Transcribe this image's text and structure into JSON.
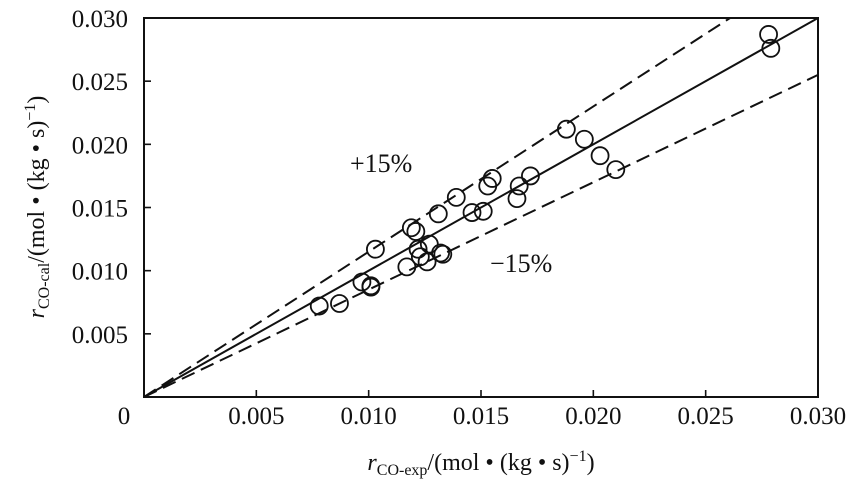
{
  "chart_data": {
    "type": "scatter",
    "xlim": [
      0,
      0.03
    ],
    "ylim": [
      0,
      0.03
    ],
    "xticks": [
      "0",
      "0.005",
      "0.010",
      "0.015",
      "0.020",
      "0.025",
      "0.030"
    ],
    "yticks": [
      "0.005",
      "0.010",
      "0.015",
      "0.020",
      "0.025",
      "0.030"
    ],
    "origin_label": "0",
    "xlabel": {
      "main": "r",
      "sub": "CO-exp",
      "rest": "/(mol • (kg • s)",
      "sup": "−1",
      "close": ")"
    },
    "ylabel": {
      "main": "r",
      "sub": "CO-cal",
      "rest": "/(mol • (kg • s)",
      "sup": "−1",
      "close": ")"
    },
    "annotations": {
      "upper": "+15%",
      "lower": "−15%"
    },
    "reference_lines": [
      {
        "kind": "parity",
        "slope": 1.0,
        "style": "solid"
      },
      {
        "kind": "upper-bound",
        "slope": 1.15,
        "style": "dashed"
      },
      {
        "kind": "lower-bound",
        "slope": 0.85,
        "style": "dashed"
      }
    ],
    "grid": false,
    "points": [
      {
        "x": 0.0078,
        "y": 0.0072
      },
      {
        "x": 0.0087,
        "y": 0.0074
      },
      {
        "x": 0.0097,
        "y": 0.0091
      },
      {
        "x": 0.0101,
        "y": 0.0088
      },
      {
        "x": 0.0101,
        "y": 0.0087
      },
      {
        "x": 0.0103,
        "y": 0.0117
      },
      {
        "x": 0.0117,
        "y": 0.0103
      },
      {
        "x": 0.0119,
        "y": 0.0134
      },
      {
        "x": 0.0121,
        "y": 0.0131
      },
      {
        "x": 0.0122,
        "y": 0.0117
      },
      {
        "x": 0.0123,
        "y": 0.0111
      },
      {
        "x": 0.0126,
        "y": 0.0107
      },
      {
        "x": 0.0127,
        "y": 0.0121
      },
      {
        "x": 0.0132,
        "y": 0.0114
      },
      {
        "x": 0.0133,
        "y": 0.0113
      },
      {
        "x": 0.0131,
        "y": 0.0145
      },
      {
        "x": 0.0139,
        "y": 0.0158
      },
      {
        "x": 0.0146,
        "y": 0.0146
      },
      {
        "x": 0.0151,
        "y": 0.0147
      },
      {
        "x": 0.0153,
        "y": 0.0167
      },
      {
        "x": 0.0155,
        "y": 0.0173
      },
      {
        "x": 0.0166,
        "y": 0.0157
      },
      {
        "x": 0.0167,
        "y": 0.0167
      },
      {
        "x": 0.0172,
        "y": 0.0175
      },
      {
        "x": 0.0188,
        "y": 0.0212
      },
      {
        "x": 0.0196,
        "y": 0.0204
      },
      {
        "x": 0.0203,
        "y": 0.0191
      },
      {
        "x": 0.021,
        "y": 0.018
      },
      {
        "x": 0.0278,
        "y": 0.0287
      },
      {
        "x": 0.0279,
        "y": 0.0276
      }
    ]
  }
}
